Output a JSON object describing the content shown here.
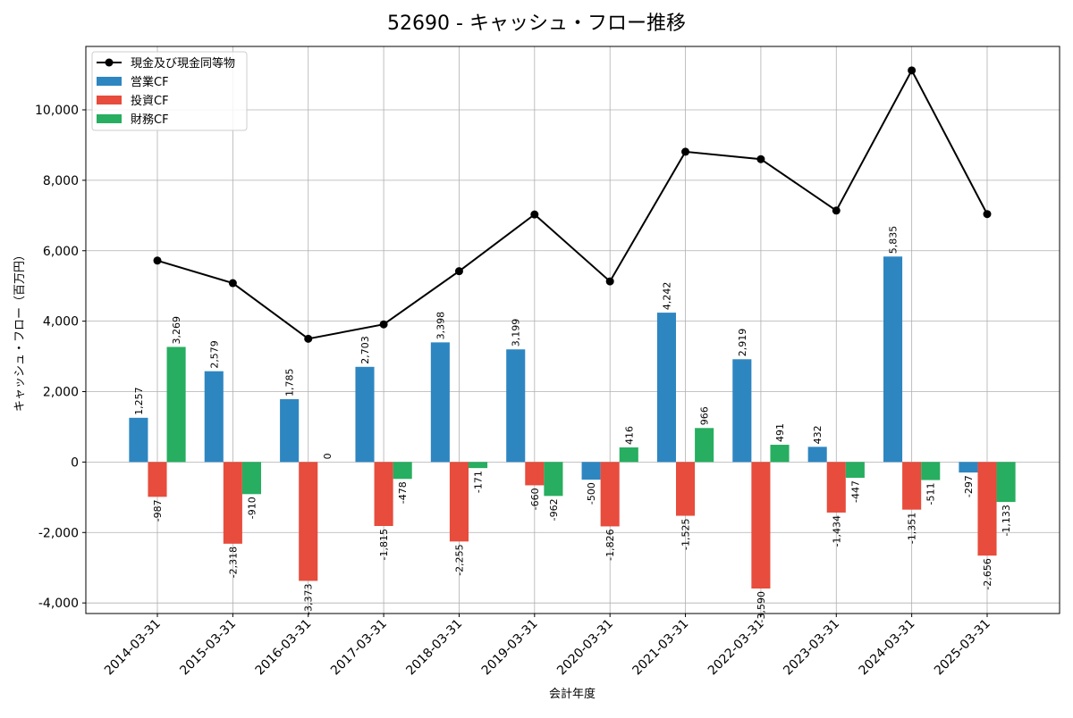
{
  "chart_data": {
    "type": "bar",
    "title": "52690 - キャッシュ・フロー推移",
    "xlabel": "会計年度",
    "ylabel": "キャッシュ・フロー（百万円）",
    "ylim": [
      -4300,
      11800
    ],
    "yticks": [
      -4000,
      -2000,
      0,
      2000,
      4000,
      6000,
      8000,
      10000
    ],
    "grid": true,
    "legend_position": "top-left",
    "categories": [
      "2014-03-31",
      "2015-03-31",
      "2016-03-31",
      "2017-03-31",
      "2018-03-31",
      "2019-03-31",
      "2020-03-31",
      "2021-03-31",
      "2022-03-31",
      "2023-03-31",
      "2024-03-31",
      "2025-03-31"
    ],
    "series": [
      {
        "name": "営業CF",
        "type": "bar",
        "color": "#2e86c1",
        "values": [
          1257,
          2579,
          1785,
          2703,
          3398,
          3199,
          -500,
          4242,
          2919,
          432,
          5835,
          -297
        ],
        "labels": [
          "1,257",
          "2,579",
          "1,785",
          "2,703",
          "3,398",
          "3,199",
          "-500",
          "4,242",
          "2,919",
          "432",
          "5,835",
          "-297"
        ]
      },
      {
        "name": "投資CF",
        "type": "bar",
        "color": "#e74c3c",
        "values": [
          -987,
          -2318,
          -3373,
          -1815,
          -2255,
          -660,
          -1826,
          -1525,
          -3590,
          -1434,
          -1351,
          -2656
        ],
        "labels": [
          "-987",
          "-2,318",
          "-3,373",
          "-1,815",
          "-2,255",
          "-660",
          "-1,826",
          "-1,525",
          "-3,590",
          "-1,434",
          "-1,351",
          "-2,656"
        ]
      },
      {
        "name": "財務CF",
        "type": "bar",
        "color": "#27ae60",
        "values": [
          3269,
          -910,
          0,
          -478,
          -171,
          -962,
          416,
          966,
          491,
          -447,
          -511,
          -1133
        ],
        "labels": [
          "3,269",
          "-910",
          "0",
          "-478",
          "-171",
          "-962",
          "416",
          "966",
          "491",
          "-447",
          "-511",
          "-1,133"
        ]
      },
      {
        "name": "現金及び現金同等物",
        "type": "line",
        "color": "#000000",
        "values": [
          5720,
          5080,
          3500,
          3910,
          5420,
          7030,
          5130,
          8810,
          8600,
          7140,
          11120,
          7040
        ]
      }
    ]
  }
}
